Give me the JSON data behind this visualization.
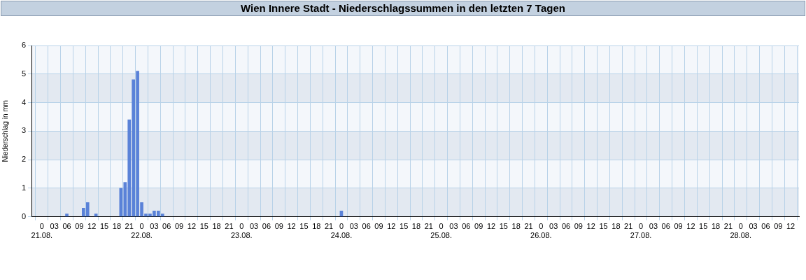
{
  "chart_data": {
    "type": "bar",
    "title": "Wien Innere Stadt - Niederschlagssummen in den letzten 7 Tagen",
    "ylabel": "Niederschlag in mm",
    "x": [
      "--08-21T06:00",
      "--08-21T10:00",
      "--08-21T11:00",
      "--08-21T13:00",
      "--08-21T19:00",
      "--08-21T20:00",
      "--08-21T21:00",
      "--08-21T22:00",
      "--08-21T23:00",
      "--08-22T00:00",
      "--08-22T01:00",
      "--08-22T02:00",
      "--08-22T03:00",
      "--08-22T04:00",
      "--08-22T05:00",
      "--08-24T00:00"
    ],
    "values": [
      0.1,
      0.3,
      0.5,
      0.1,
      1.0,
      1.2,
      3.4,
      4.8,
      5.1,
      0.5,
      0.1,
      0.1,
      0.2,
      0.2,
      0.1,
      0.2
    ],
    "color": "#5a82d8",
    "ylim": [
      0,
      6
    ],
    "yticks": [
      0,
      1,
      2,
      3,
      4,
      5,
      6
    ],
    "xlim": [
      "--08-20T21:30",
      "--08-28T14:00"
    ],
    "xticks": [
      {
        "value": "--08-21T00:00",
        "label": "0\n21.08."
      },
      {
        "value": "--08-21T03:00",
        "label": "03"
      },
      {
        "value": "--08-21T06:00",
        "label": "06"
      },
      {
        "value": "--08-21T09:00",
        "label": "09"
      },
      {
        "value": "--08-21T12:00",
        "label": "12"
      },
      {
        "value": "--08-21T15:00",
        "label": "15"
      },
      {
        "value": "--08-21T18:00",
        "label": "18"
      },
      {
        "value": "--08-21T21:00",
        "label": "21"
      },
      {
        "value": "--08-22T00:00",
        "label": "0\n22.08."
      },
      {
        "value": "--08-22T03:00",
        "label": "03"
      },
      {
        "value": "--08-22T06:00",
        "label": "06"
      },
      {
        "value": "--08-22T09:00",
        "label": "09"
      },
      {
        "value": "--08-22T12:00",
        "label": "12"
      },
      {
        "value": "--08-22T15:00",
        "label": "15"
      },
      {
        "value": "--08-22T18:00",
        "label": "18"
      },
      {
        "value": "--08-22T21:00",
        "label": "21"
      },
      {
        "value": "--08-23T00:00",
        "label": "0\n23.08."
      },
      {
        "value": "--08-23T03:00",
        "label": "03"
      },
      {
        "value": "--08-23T06:00",
        "label": "06"
      },
      {
        "value": "--08-23T09:00",
        "label": "09"
      },
      {
        "value": "--08-23T12:00",
        "label": "12"
      },
      {
        "value": "--08-23T15:00",
        "label": "15"
      },
      {
        "value": "--08-23T18:00",
        "label": "18"
      },
      {
        "value": "--08-23T21:00",
        "label": "21"
      },
      {
        "value": "--08-24T00:00",
        "label": "0\n24.08."
      },
      {
        "value": "--08-24T03:00",
        "label": "03"
      },
      {
        "value": "--08-24T06:00",
        "label": "06"
      },
      {
        "value": "--08-24T09:00",
        "label": "09"
      },
      {
        "value": "--08-24T12:00",
        "label": "12"
      },
      {
        "value": "--08-24T15:00",
        "label": "15"
      },
      {
        "value": "--08-24T18:00",
        "label": "18"
      },
      {
        "value": "--08-24T21:00",
        "label": "21"
      },
      {
        "value": "--08-25T00:00",
        "label": "0\n25.08."
      },
      {
        "value": "--08-25T03:00",
        "label": "03"
      },
      {
        "value": "--08-25T06:00",
        "label": "06"
      },
      {
        "value": "--08-25T09:00",
        "label": "09"
      },
      {
        "value": "--08-25T12:00",
        "label": "12"
      },
      {
        "value": "--08-25T15:00",
        "label": "15"
      },
      {
        "value": "--08-25T18:00",
        "label": "18"
      },
      {
        "value": "--08-25T21:00",
        "label": "21"
      },
      {
        "value": "--08-26T00:00",
        "label": "0\n26.08."
      },
      {
        "value": "--08-26T03:00",
        "label": "03"
      },
      {
        "value": "--08-26T06:00",
        "label": "06"
      },
      {
        "value": "--08-26T09:00",
        "label": "09"
      },
      {
        "value": "--08-26T12:00",
        "label": "12"
      },
      {
        "value": "--08-26T15:00",
        "label": "15"
      },
      {
        "value": "--08-26T18:00",
        "label": "18"
      },
      {
        "value": "--08-26T21:00",
        "label": "21"
      },
      {
        "value": "--08-27T00:00",
        "label": "0\n27.08."
      },
      {
        "value": "--08-27T03:00",
        "label": "03"
      },
      {
        "value": "--08-27T06:00",
        "label": "06"
      },
      {
        "value": "--08-27T09:00",
        "label": "09"
      },
      {
        "value": "--08-27T12:00",
        "label": "12"
      },
      {
        "value": "--08-27T15:00",
        "label": "15"
      },
      {
        "value": "--08-27T18:00",
        "label": "18"
      },
      {
        "value": "--08-27T21:00",
        "label": "21"
      },
      {
        "value": "--08-28T00:00",
        "label": "0\n28.08."
      },
      {
        "value": "--08-28T03:00",
        "label": "03"
      },
      {
        "value": "--08-28T06:00",
        "label": "06"
      },
      {
        "value": "--08-28T09:00",
        "label": "09"
      },
      {
        "value": "--08-28T12:00",
        "label": "12"
      }
    ],
    "grid": true,
    "legend": false
  }
}
